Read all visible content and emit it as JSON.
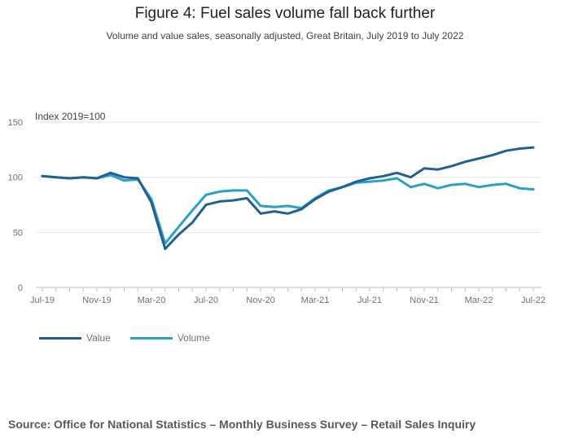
{
  "title": "Figure 4: Fuel sales volume fall back further",
  "subtitle": "Volume and value sales, seasonally adjusted, Great Britain, July 2019 to July 2022",
  "source": "Source: Office for National Statistics – Monthly Business Survey – Retail Sales Inquiry",
  "chart_data": {
    "type": "line",
    "ylabel": "Index 2019=100",
    "ylim": [
      0,
      150
    ],
    "yticks": [
      0,
      50,
      100,
      150
    ],
    "grid": true,
    "legend_position": "bottom-left",
    "x": [
      "Jul-19",
      "Aug-19",
      "Sep-19",
      "Oct-19",
      "Nov-19",
      "Dec-19",
      "Jan-20",
      "Feb-20",
      "Mar-20",
      "Apr-20",
      "May-20",
      "Jun-20",
      "Jul-20",
      "Aug-20",
      "Sep-20",
      "Oct-20",
      "Nov-20",
      "Dec-20",
      "Jan-21",
      "Feb-21",
      "Mar-21",
      "Apr-21",
      "May-21",
      "Jun-21",
      "Jul-21",
      "Aug-21",
      "Sep-21",
      "Oct-21",
      "Nov-21",
      "Dec-21",
      "Jan-22",
      "Feb-22",
      "Mar-22",
      "Apr-22",
      "May-22",
      "Jun-22",
      "Jul-22"
    ],
    "xtick_labels": [
      "Jul-19",
      "Nov-19",
      "Mar-20",
      "Jul-20",
      "Nov-20",
      "Mar-21",
      "Jul-21",
      "Nov-21",
      "Mar-22",
      "Jul-22"
    ],
    "series": [
      {
        "name": "Value",
        "color": "#206095",
        "values": [
          101,
          100,
          99,
          100,
          99,
          104,
          100,
          99,
          77,
          35,
          48,
          59,
          75,
          78,
          79,
          81,
          67,
          69,
          67,
          71,
          80,
          87,
          91,
          96,
          99,
          101,
          104,
          100,
          108,
          107,
          110,
          114,
          117,
          120,
          124,
          126,
          127
        ]
      },
      {
        "name": "Volume",
        "color": "#27a0cc",
        "values": [
          101,
          100,
          99,
          100,
          99,
          102,
          97,
          98,
          80,
          40,
          55,
          70,
          84,
          87,
          88,
          88,
          74,
          73,
          74,
          72,
          81,
          88,
          91,
          95,
          96,
          97,
          99,
          91,
          94,
          90,
          93,
          94,
          91,
          93,
          94,
          90,
          89
        ]
      }
    ]
  }
}
